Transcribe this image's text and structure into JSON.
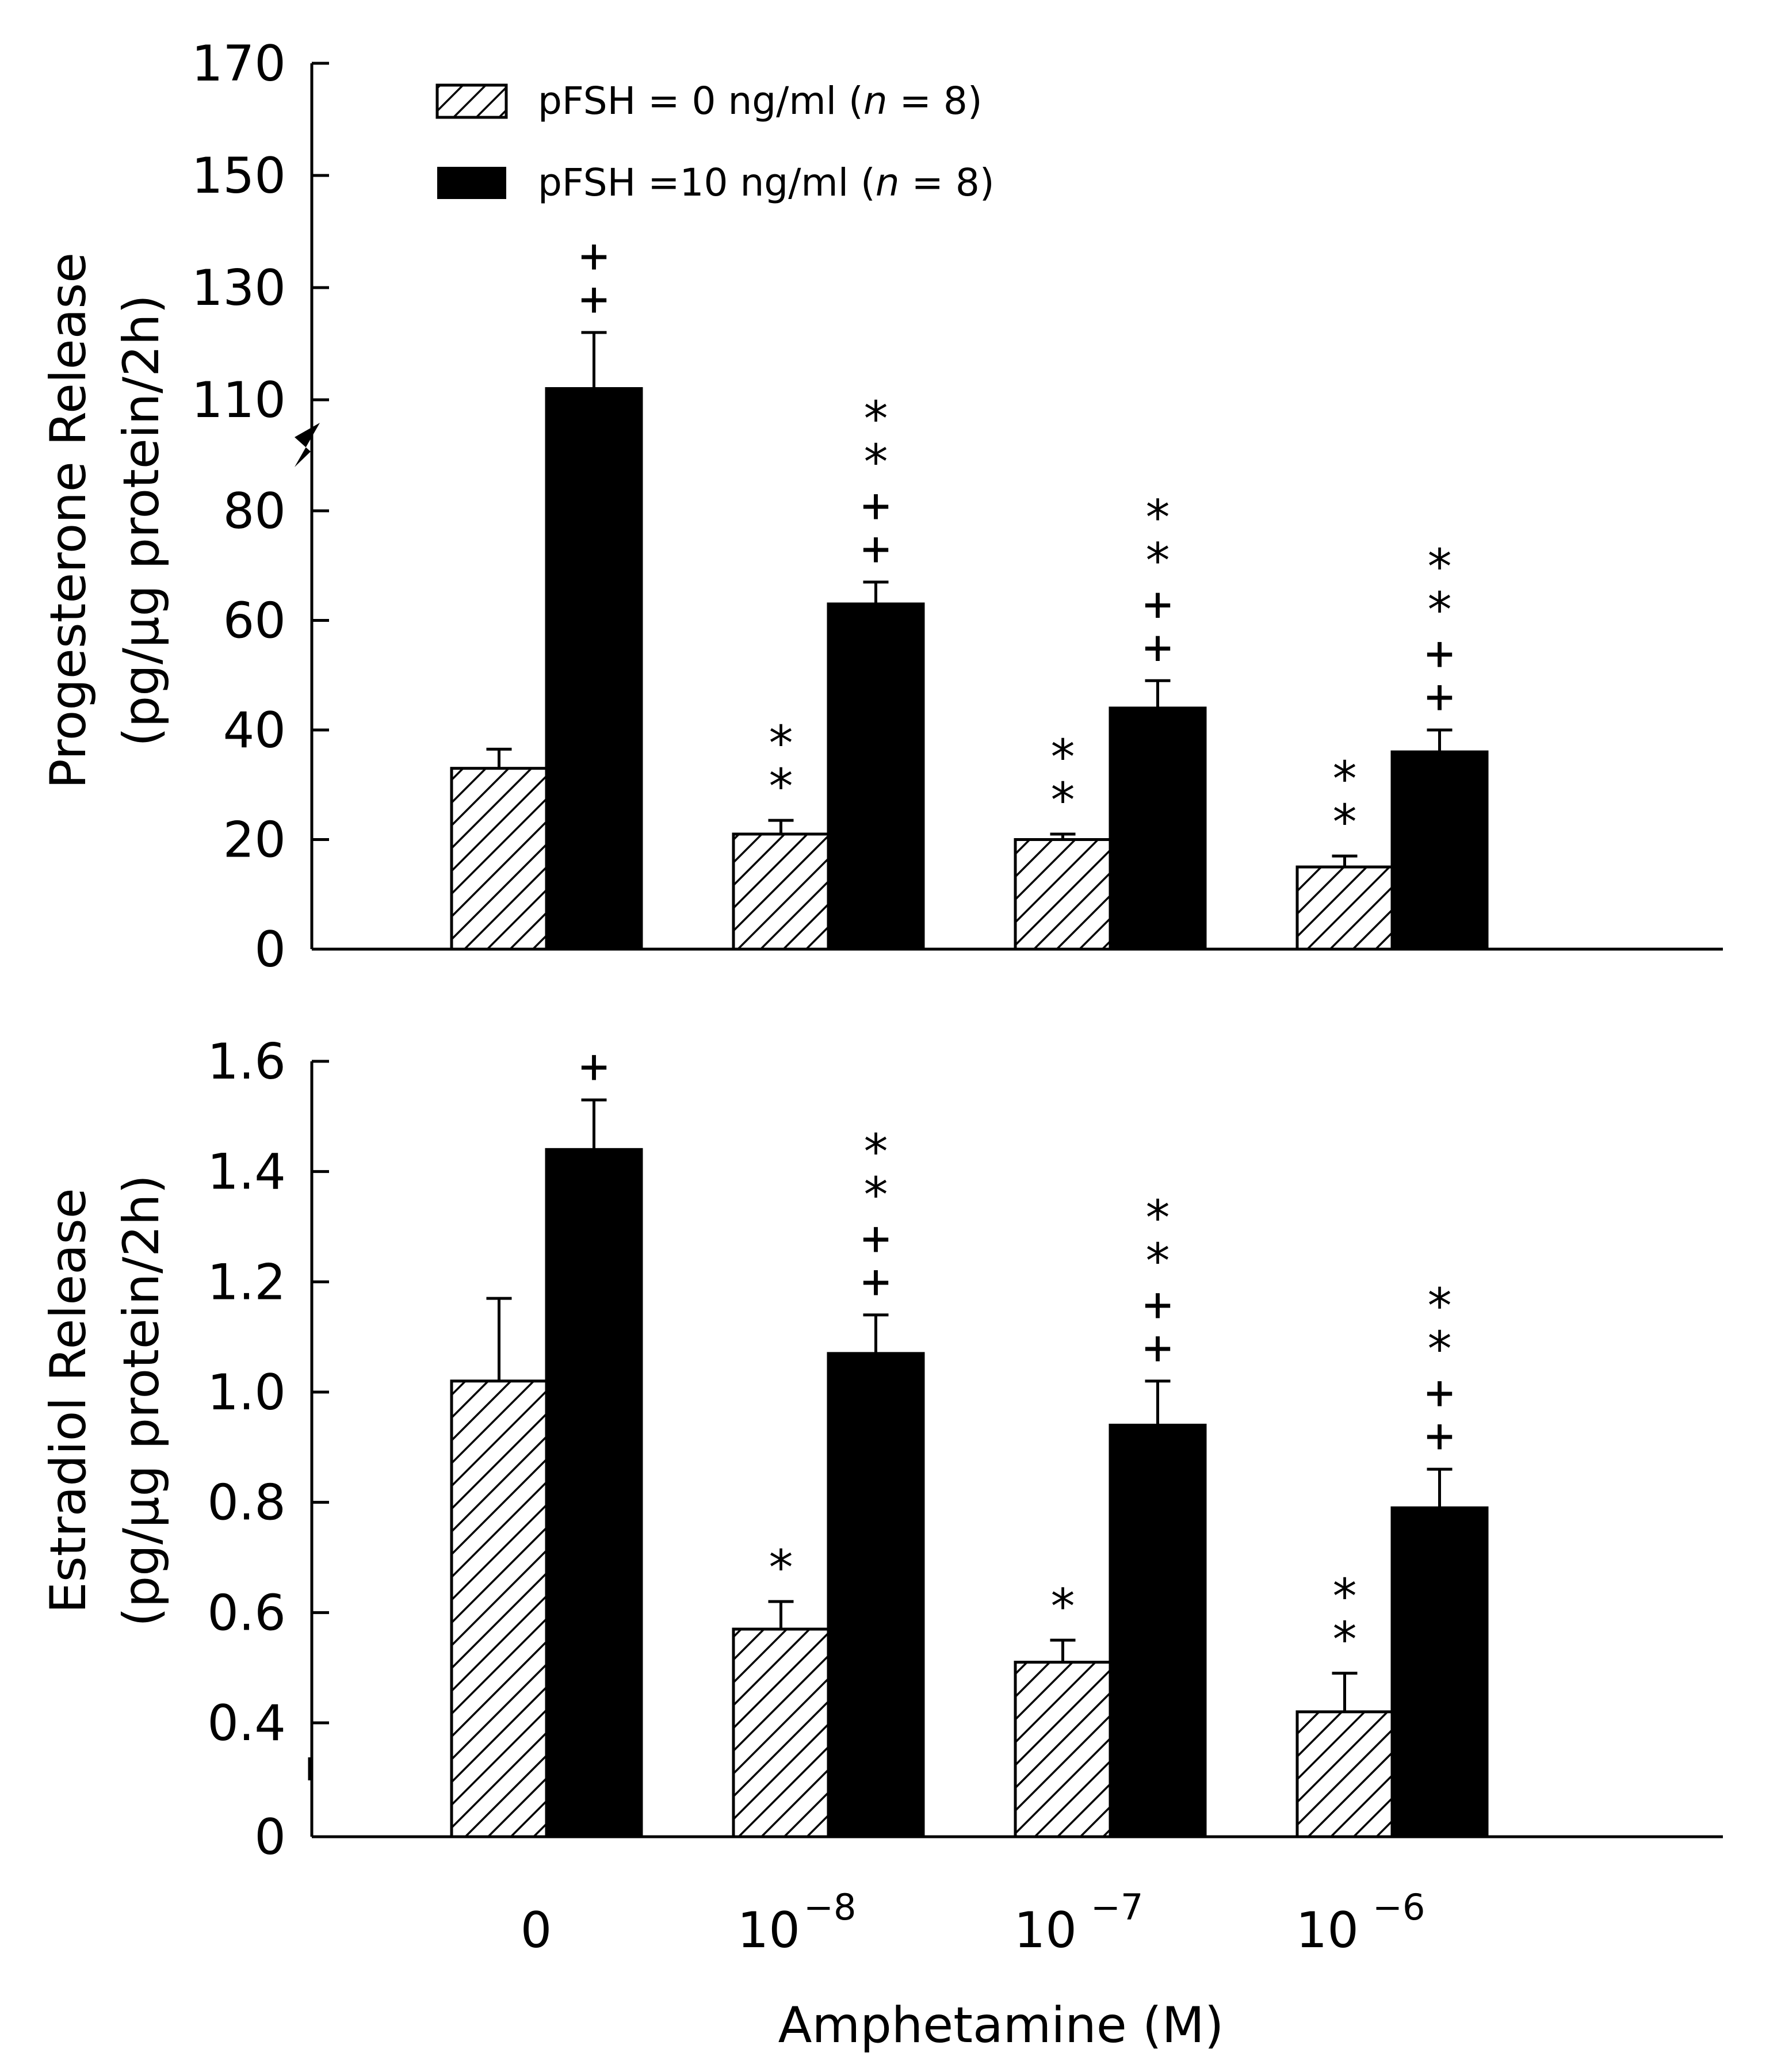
{
  "chart_data": [
    {
      "type": "bar",
      "panel": "top",
      "ylabel_line1": "Progesterone Release",
      "ylabel_line2": "(pg/μg protein/2h)",
      "ylim": [
        0,
        170
      ],
      "axis_break": {
        "below": 80,
        "above": 110
      },
      "yticks": [
        {
          "value": 0,
          "label": "0"
        },
        {
          "value": 20,
          "label": "20"
        },
        {
          "value": 40,
          "label": "40"
        },
        {
          "value": 60,
          "label": "60"
        },
        {
          "value": 80,
          "label": "80"
        },
        {
          "value": 110,
          "label": "110"
        },
        {
          "value": 130,
          "label": "130"
        },
        {
          "value": 150,
          "label": "150"
        },
        {
          "value": 170,
          "label": "170"
        }
      ],
      "categories": [
        "0",
        "10^-8",
        "10^-7",
        "10^-6"
      ],
      "series": [
        {
          "name": "pFSH = 0 ng/ml (n = 8)",
          "values": [
            33,
            21,
            20,
            15
          ],
          "errors": [
            3.5,
            2.5,
            1,
            2
          ],
          "sig": [
            "",
            "**",
            "**",
            "**"
          ]
        },
        {
          "name": "pFSH = 10 ng/ml (n = 8)",
          "values": [
            112,
            63,
            44,
            36
          ],
          "errors": [
            10,
            4,
            5,
            4
          ],
          "sig": [
            "++",
            "**++",
            "**++",
            "**++"
          ]
        }
      ]
    },
    {
      "type": "bar",
      "panel": "bottom",
      "ylabel_line1": "Estradiol Release",
      "ylabel_line2": "(pg/μg protein/2h)",
      "ylim": [
        0,
        1.6
      ],
      "axis_break": {
        "below": 0,
        "above": 0.4
      },
      "yticks": [
        {
          "value": 0,
          "label": "0"
        },
        {
          "value": 0.4,
          "label": "0.4"
        },
        {
          "value": 0.6,
          "label": "0.6"
        },
        {
          "value": 0.8,
          "label": "0.8"
        },
        {
          "value": 1.0,
          "label": "1.0"
        },
        {
          "value": 1.2,
          "label": "1.2"
        },
        {
          "value": 1.4,
          "label": "1.4"
        },
        {
          "value": 1.6,
          "label": "1.6"
        }
      ],
      "categories": [
        "0",
        "10^-8",
        "10^-7",
        "10^-6"
      ],
      "series": [
        {
          "name": "pFSH = 0 ng/ml (n = 8)",
          "values": [
            1.02,
            0.57,
            0.51,
            0.42
          ],
          "errors": [
            0.15,
            0.05,
            0.04,
            0.07
          ],
          "sig": [
            "",
            "*",
            "*",
            "**"
          ]
        },
        {
          "name": "pFSH = 10 ng/ml (n = 8)",
          "values": [
            1.44,
            1.07,
            0.94,
            0.79
          ],
          "errors": [
            0.09,
            0.07,
            0.08,
            0.07
          ],
          "sig": [
            "+",
            "**++",
            "**++",
            "**++"
          ]
        }
      ]
    }
  ],
  "legend": {
    "items": [
      {
        "pattern": "hatched",
        "label": "pFSH = 0 ng/ml (",
        "n_symbol": "n",
        "n_value": " = 8)"
      },
      {
        "pattern": "solid",
        "label": "pFSH =10 ng/ml (",
        "n_symbol": "n",
        "n_value": " = 8)"
      }
    ]
  },
  "x_axis": {
    "title": "Amphetamine (M)",
    "category_labels": [
      {
        "base": "0",
        "exp": ""
      },
      {
        "base": "10",
        "exp": "−8"
      },
      {
        "base": "10",
        "exp": "−7"
      },
      {
        "base": "10",
        "exp": "−6"
      }
    ]
  },
  "colors": {
    "bar_solid": "#000000",
    "bar_hatched_stroke": "#000000",
    "background": "#ffffff"
  }
}
